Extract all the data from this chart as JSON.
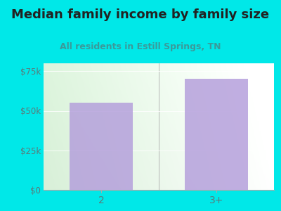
{
  "title": "Median family income by family size",
  "subtitle": "All residents in Estill Springs, TN",
  "categories": [
    "2",
    "3+"
  ],
  "values": [
    55000,
    70000
  ],
  "bar_color": "#b39ddb",
  "outer_bg": "#00e8e8",
  "title_color": "#222222",
  "subtitle_color": "#3a9a9a",
  "tick_label_color": "#5a7a7a",
  "ylim": [
    0,
    80000
  ],
  "yticks": [
    0,
    25000,
    50000,
    75000
  ],
  "ytick_labels": [
    "$0",
    "$25k",
    "$50k",
    "$75k"
  ],
  "title_fontsize": 13,
  "subtitle_fontsize": 9,
  "bar_width": 0.55,
  "bar_alpha": 0.82
}
